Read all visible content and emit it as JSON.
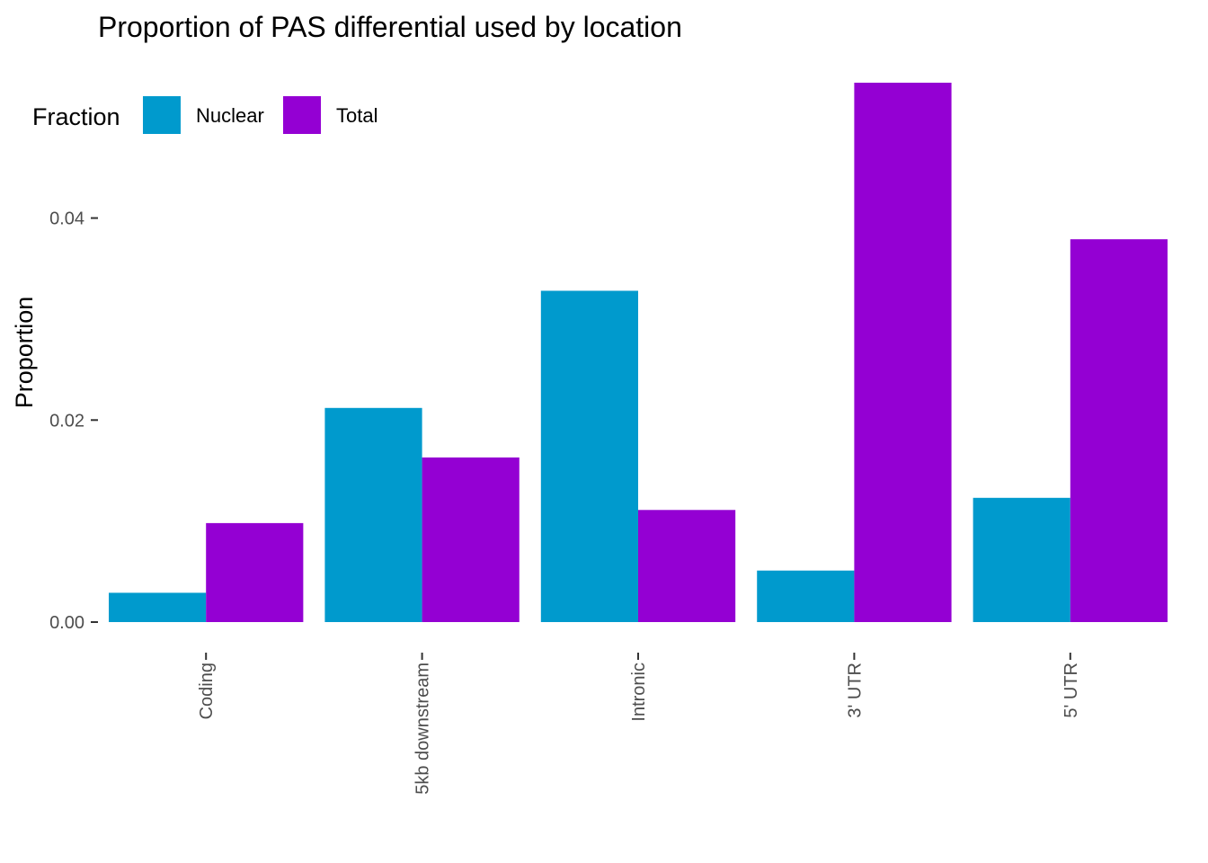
{
  "chart_data": {
    "type": "bar",
    "title": "Proportion of PAS differential used by location",
    "xlabel": "",
    "ylabel": "Proportion",
    "categories": [
      "Coding",
      "5kb downstream",
      "Intronic",
      "3' UTR",
      "5' UTR"
    ],
    "series": [
      {
        "name": "Nuclear",
        "color": "#009ACD",
        "values": [
          0.0029,
          0.0212,
          0.0328,
          0.0051,
          0.0123
        ]
      },
      {
        "name": "Total",
        "color": "#9400D3",
        "values": [
          0.0098,
          0.0163,
          0.0111,
          0.0534,
          0.0379
        ]
      }
    ],
    "y_ticks": [
      "0.00",
      "0.02",
      "0.04"
    ],
    "y_tick_values": [
      0,
      0.02,
      0.04
    ],
    "ylim": [
      0,
      0.0534
    ],
    "legend": {
      "title": "Fraction",
      "position": "top-left"
    },
    "grid": false
  }
}
